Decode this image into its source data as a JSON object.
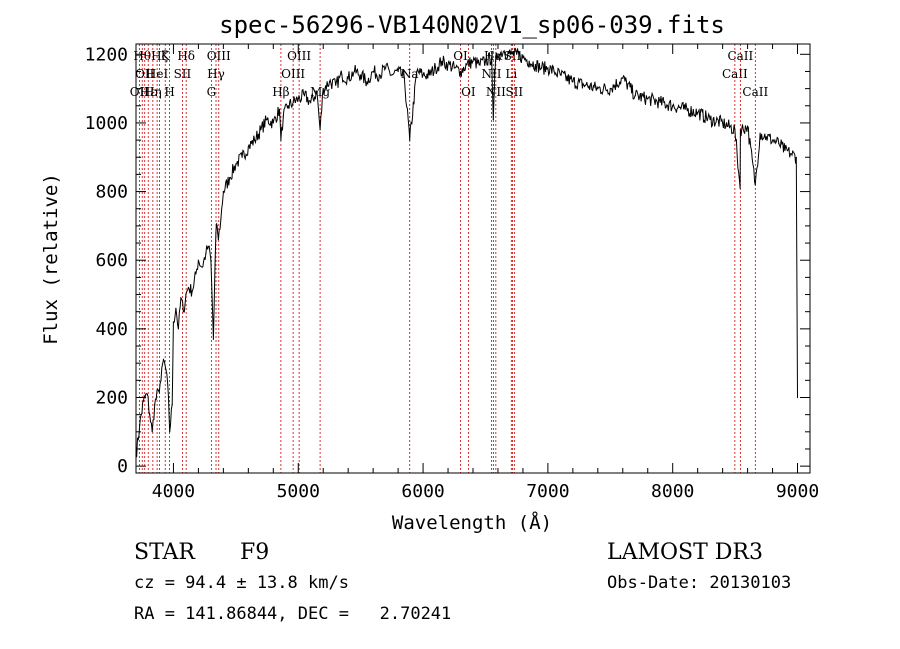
{
  "chart_data": {
    "type": "line",
    "title": "spec-56296-VB140N02V1_sp06-039.fits",
    "xlabel": "Wavelength (Å)",
    "ylabel": "Flux (relative)",
    "xlim": [
      3700,
      9100
    ],
    "ylim": [
      -20,
      1230
    ],
    "xticks": [
      4000,
      5000,
      6000,
      7000,
      8000,
      9000
    ],
    "xtick_labels": [
      "4000",
      "5000",
      "6000",
      "7000",
      "8000",
      "9000"
    ],
    "yticks": [
      0,
      200,
      400,
      600,
      800,
      1000,
      1200
    ],
    "ytick_labels": [
      "0",
      "200",
      "400",
      "600",
      "800",
      "1000",
      "1200"
    ],
    "grid": false,
    "series": [
      {
        "name": "spectrum",
        "x": [
          3700,
          3730,
          3760,
          3790,
          3810,
          3830,
          3850,
          3880,
          3900,
          3920,
          3940,
          3960,
          3970,
          3990,
          4000,
          4020,
          4040,
          4060,
          4080,
          4100,
          4120,
          4150,
          4180,
          4200,
          4230,
          4260,
          4280,
          4300,
          4320,
          4340,
          4350,
          4360,
          4380,
          4400,
          4450,
          4500,
          4550,
          4600,
          4650,
          4700,
          4750,
          4800,
          4850,
          4861,
          4880,
          4920,
          4960,
          5000,
          5050,
          5100,
          5150,
          5175,
          5200,
          5250,
          5300,
          5350,
          5400,
          5450,
          5500,
          5550,
          5600,
          5650,
          5700,
          5750,
          5800,
          5850,
          5893,
          5950,
          6000,
          6050,
          6100,
          6150,
          6200,
          6250,
          6300,
          6350,
          6400,
          6450,
          6500,
          6550,
          6563,
          6580,
          6600,
          6650,
          6700,
          6750,
          6800,
          6850,
          6900,
          6950,
          7000,
          7050,
          7100,
          7200,
          7300,
          7400,
          7500,
          7600,
          7700,
          7800,
          7900,
          8000,
          8100,
          8200,
          8300,
          8400,
          8498,
          8540,
          8542,
          8600,
          8662,
          8700,
          8750,
          8800,
          8850,
          8900,
          8950,
          8990,
          9000
        ],
        "values": [
          30,
          120,
          190,
          210,
          150,
          100,
          180,
          220,
          250,
          310,
          280,
          200,
          100,
          180,
          420,
          460,
          400,
          490,
          450,
          500,
          520,
          510,
          560,
          600,
          580,
          620,
          640,
          600,
          370,
          680,
          700,
          660,
          720,
          800,
          840,
          880,
          900,
          930,
          950,
          980,
          1010,
          1000,
          1040,
          950,
          1020,
          1050,
          1060,
          1070,
          1080,
          1060,
          1090,
          980,
          1100,
          1120,
          1110,
          1140,
          1130,
          1150,
          1140,
          1120,
          1150,
          1140,
          1160,
          1140,
          1150,
          1130,
          950,
          1150,
          1140,
          1140,
          1160,
          1180,
          1170,
          1160,
          1150,
          1170,
          1180,
          1170,
          1180,
          1190,
          1010,
          1180,
          1200,
          1210,
          1200,
          1200,
          1190,
          1180,
          1170,
          1160,
          1160,
          1150,
          1140,
          1120,
          1110,
          1100,
          1100,
          1130,
          1080,
          1070,
          1060,
          1050,
          1040,
          1030,
          1010,
          1000,
          980,
          810,
          980,
          990,
          820,
          970,
          960,
          950,
          940,
          920,
          910,
          900,
          200
        ]
      }
    ],
    "line_markers": [
      {
        "wavelength": 3727,
        "label": "OII",
        "row": 2
      },
      {
        "wavelength": 3750,
        "label": "Hθ",
        "row": 0
      },
      {
        "wavelength": 3770,
        "label": "OII",
        "row": 1
      },
      {
        "wavelength": 3798,
        "label": "Hε",
        "row": 2
      },
      {
        "wavelength": 3835,
        "label": "Hη",
        "row": 2
      },
      {
        "wavelength": 3869,
        "label": "HeI",
        "row": 1
      },
      {
        "wavelength": 3889,
        "label": "Hζ",
        "row": 0
      },
      {
        "wavelength": 3934,
        "label": "K",
        "row": 0
      },
      {
        "wavelength": 3969,
        "label": "H",
        "row": 2
      },
      {
        "wavelength": 4072,
        "label": "SII",
        "row": 1
      },
      {
        "wavelength": 4102,
        "label": "Hδ",
        "row": 0
      },
      {
        "wavelength": 4304,
        "label": "G",
        "row": 2
      },
      {
        "wavelength": 4341,
        "label": "Hγ",
        "row": 1
      },
      {
        "wavelength": 4363,
        "label": "OIII",
        "row": 0
      },
      {
        "wavelength": 4861,
        "label": "Hβ",
        "row": 2
      },
      {
        "wavelength": 4959,
        "label": "OIII",
        "row": 1
      },
      {
        "wavelength": 5007,
        "label": "OIII",
        "row": 0
      },
      {
        "wavelength": 5175,
        "label": "Mg",
        "row": 2
      },
      {
        "wavelength": 5893,
        "label": "Na",
        "row": 1
      },
      {
        "wavelength": 6300,
        "label": "OI",
        "row": 0
      },
      {
        "wavelength": 6363,
        "label": "OI",
        "row": 2
      },
      {
        "wavelength": 6548,
        "label": "NII",
        "row": 1
      },
      {
        "wavelength": 6563,
        "label": "Hα",
        "row": 0
      },
      {
        "wavelength": 6583,
        "label": "NII",
        "row": 2
      },
      {
        "wavelength": 6707,
        "label": "Li",
        "row": 1
      },
      {
        "wavelength": 6716,
        "label": "SII",
        "row": 0
      },
      {
        "wavelength": 6731,
        "label": "SII",
        "row": 2
      },
      {
        "wavelength": 8498,
        "label": "CaII",
        "row": 1
      },
      {
        "wavelength": 8542,
        "label": "CaII",
        "row": 0
      },
      {
        "wavelength": 8662,
        "label": "CaII",
        "row": 2
      }
    ]
  },
  "info": {
    "class_label": "STAR",
    "subclass": "F9",
    "survey": "LAMOST DR3",
    "redshift_text": "cz = 94.4 ± 13.8 km/s",
    "obs_date_text": "Obs-Date: 20130103",
    "coords_text": "RA = 141.86844, DEC =   2.70241"
  },
  "colors": {
    "spectrum": "#000000",
    "marker_line": "#cc0000",
    "axis": "#000000"
  }
}
